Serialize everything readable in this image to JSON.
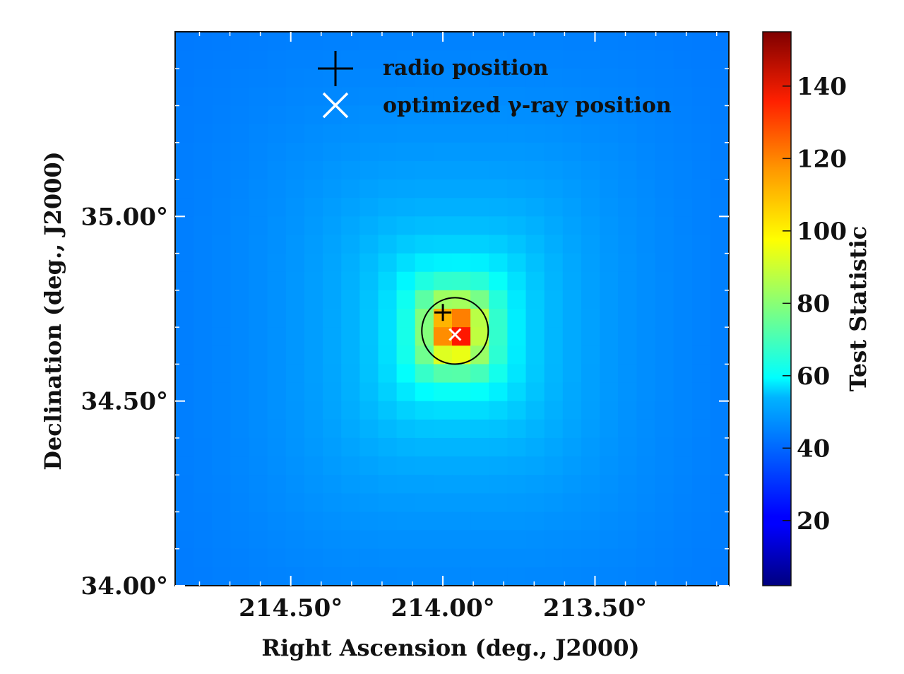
{
  "chart_data": {
    "type": "heatmap",
    "colormap": "jet",
    "xlabel": "Right Ascension (deg., J2000)",
    "ylabel": "Declination (deg., J2000)",
    "x_direction": "reversed",
    "xlim": [
      214.88,
      213.06
    ],
    "ylim": [
      34.0,
      35.5
    ],
    "xticks": [
      {
        "value": 214.5,
        "label": "214.50°"
      },
      {
        "value": 214.0,
        "label": "214.00°"
      },
      {
        "value": 213.5,
        "label": "213.50°"
      }
    ],
    "yticks": [
      {
        "value": 34.0,
        "label": "34.00°"
      },
      {
        "value": 34.5,
        "label": "34.50°"
      },
      {
        "value": 35.0,
        "label": "35.00°"
      }
    ],
    "colorbar": {
      "label": "Test Statistic",
      "vmin": 2,
      "vmax": 155,
      "ticks": [
        20,
        40,
        60,
        80,
        100,
        120,
        140
      ]
    },
    "grid": {
      "nx": 30,
      "ny": 30,
      "peak_ra": 213.96,
      "peak_dec": 34.69,
      "peak_ts": 140,
      "background_ts": 38
    },
    "markers": [
      {
        "name": "radio position",
        "symbol": "+",
        "color": "#000000",
        "ra": 214.0,
        "dec": 34.74
      },
      {
        "name": "optimized γ-ray position",
        "symbol": "x",
        "color": "#ffffff",
        "ra": 213.96,
        "dec": 34.68
      }
    ],
    "error_circle": {
      "ra": 213.96,
      "dec": 34.69,
      "radius_deg": 0.09,
      "color": "#000000"
    },
    "legend": {
      "position": "top-center",
      "entries": [
        "radio position",
        "optimized γ-ray position"
      ]
    }
  }
}
